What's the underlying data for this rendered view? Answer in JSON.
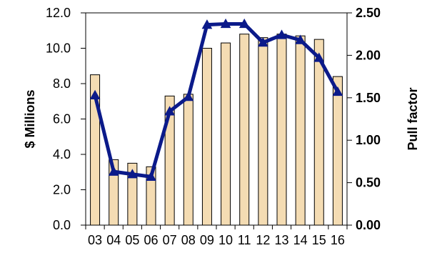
{
  "chart_data": {
    "type": "bar",
    "categories": [
      "03",
      "04",
      "05",
      "06",
      "07",
      "08",
      "09",
      "10",
      "11",
      "12",
      "13",
      "14",
      "15",
      "16"
    ],
    "series": [
      {
        "type": "bar",
        "axis": "left",
        "values": [
          8.5,
          3.7,
          3.5,
          3.3,
          7.3,
          7.4,
          10.0,
          10.3,
          10.8,
          10.6,
          10.8,
          10.7,
          10.5,
          8.4
        ],
        "fill": "#f4dcb3",
        "stroke": "#000000"
      },
      {
        "type": "line",
        "axis": "right",
        "values": [
          1.53,
          0.63,
          0.6,
          0.57,
          1.34,
          1.51,
          2.36,
          2.37,
          2.37,
          2.15,
          2.24,
          2.18,
          1.97,
          1.57
        ],
        "color": "#0b1a8a",
        "marker": "triangle"
      }
    ],
    "ylabel_left": "$ Millions",
    "ylabel_right": "Pull factor",
    "ylim_left": [
      0,
      12
    ],
    "ylim_right": [
      0,
      2.5
    ],
    "left_ticks": [
      "0.0",
      "2.0",
      "4.0",
      "6.0",
      "8.0",
      "10.0",
      "12.0"
    ],
    "right_ticks": [
      "0.00",
      "0.50",
      "1.00",
      "1.50",
      "2.00",
      "2.50"
    ],
    "grid": false
  }
}
